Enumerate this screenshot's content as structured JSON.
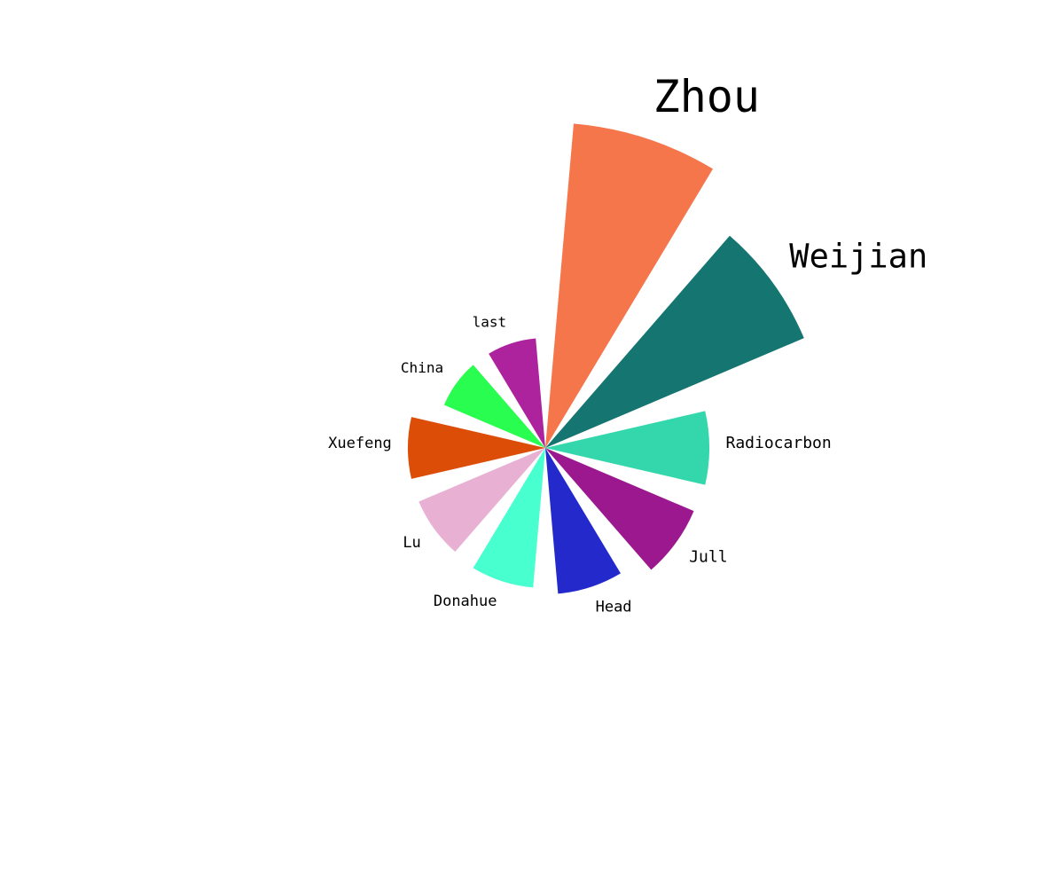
{
  "chart_data": {
    "type": "nightingale-rose",
    "title": "",
    "start_angle_deg": 0,
    "direction": "clockwise",
    "items": [
      {
        "label": "Zhou",
        "value": 367,
        "color": "#F6764C"
      },
      {
        "label": "Weijian",
        "value": 317,
        "color": "#157570"
      },
      {
        "label": "Radiocarbon",
        "value": 185,
        "color": "#34D7AC"
      },
      {
        "label": "Jull",
        "value": 182,
        "color": "#9B188E"
      },
      {
        "label": "Head",
        "value": 165,
        "color": "#2429CC"
      },
      {
        "label": "Donahue",
        "value": 158,
        "color": "#48FFD0"
      },
      {
        "label": "Lu",
        "value": 155,
        "color": "#E8B1D4"
      },
      {
        "label": "Xuefeng",
        "value": 155,
        "color": "#DC4E08"
      },
      {
        "label": "China",
        "value": 124,
        "color": "#28FD50"
      },
      {
        "label": "last",
        "value": 124,
        "color": "#AD229D"
      }
    ]
  }
}
